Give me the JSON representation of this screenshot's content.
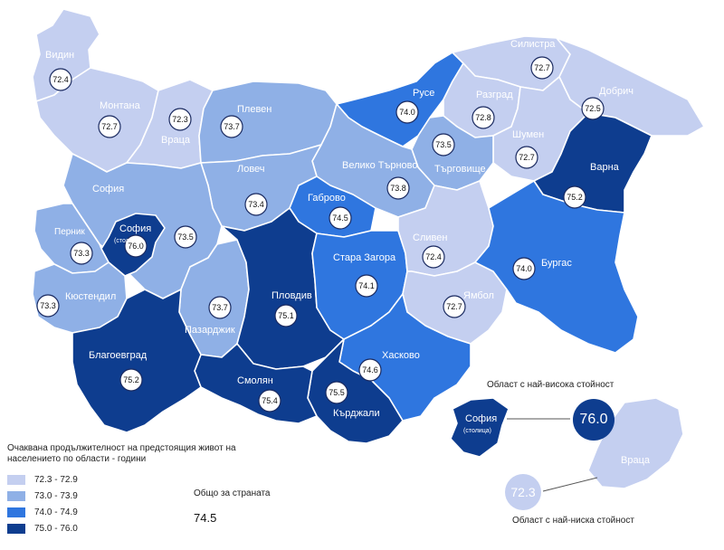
{
  "legend": {
    "title": "Очаквана продължителност на предстоящия живот на населението по области - години",
    "items": [
      {
        "label": "72.3  -  72.9",
        "color": "#c4cff0"
      },
      {
        "label": "73.0  -  73.9",
        "color": "#8fb0e6"
      },
      {
        "label": "74.0  -  74.9",
        "color": "#2f76df"
      },
      {
        "label": "75.0  -  76.0",
        "color": "#0e3d8f"
      }
    ]
  },
  "country_total": {
    "label": "Общо за страната",
    "value": "74.5"
  },
  "highest": {
    "label": "Област с най-висока стойност",
    "region": "София",
    "sub": "(столица)",
    "value": "76.0"
  },
  "lowest": {
    "label": "Област с най-ниска стойност",
    "region": "Враца",
    "value": "72.3"
  },
  "regions": {
    "vidin": {
      "name": "Видин",
      "value": "72.4"
    },
    "montana": {
      "name": "Монтана",
      "value": "72.7"
    },
    "vratsa": {
      "name": "Враца",
      "value": "72.3"
    },
    "pleven": {
      "name": "Плевен",
      "value": "73.7"
    },
    "ruse": {
      "name": "Русе",
      "value": "74.0"
    },
    "silistra": {
      "name": "Силистра",
      "value": "72.7"
    },
    "razgrad": {
      "name": "Разград",
      "value": "72.8"
    },
    "dobrich": {
      "name": "Добрич",
      "value": "72.5"
    },
    "shumen": {
      "name": "Шумен",
      "value": "72.7"
    },
    "targovishte": {
      "name": "Търговище",
      "value": "73.5"
    },
    "varna": {
      "name": "Варна",
      "value": "75.2"
    },
    "veliko_tarnovo": {
      "name": "Велико Търново",
      "value": "73.8"
    },
    "lovech": {
      "name": "Ловеч",
      "value": "73.4"
    },
    "gabrovo": {
      "name": "Габрово",
      "value": "74.5"
    },
    "sofia_obl": {
      "name": "София",
      "value": "73.5"
    },
    "sofia_cap": {
      "name": "София",
      "sub": "(столица)",
      "value": "76.0"
    },
    "pernik": {
      "name": "Перник",
      "value": "73.3"
    },
    "kyustendil": {
      "name": "Кюстендил",
      "value": "73.3"
    },
    "pazardzhik": {
      "name": "Пазарджик",
      "value": "73.7"
    },
    "plovdiv": {
      "name": "Пловдив",
      "value": "75.1"
    },
    "stara_zagora": {
      "name": "Стара Загора",
      "value": "74.1"
    },
    "sliven": {
      "name": "Сливен",
      "value": "72.4"
    },
    "yambol": {
      "name": "Ямбол",
      "value": "72.7"
    },
    "burgas": {
      "name": "Бургас",
      "value": "74.0"
    },
    "haskovo": {
      "name": "Хасково",
      "value": "74.6"
    },
    "kardzhali": {
      "name": "Кърджали",
      "value": "75.5"
    },
    "smolyan": {
      "name": "Смолян",
      "value": "75.4"
    },
    "blagoevgrad": {
      "name": "Благоевград",
      "value": "75.2"
    }
  }
}
